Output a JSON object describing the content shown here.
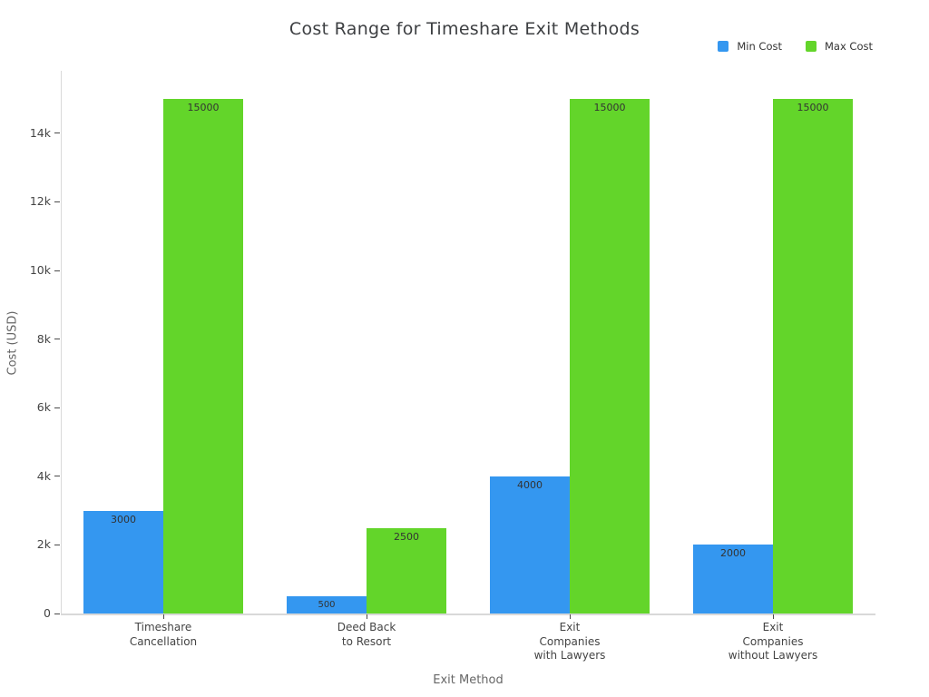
{
  "chart_data": {
    "type": "bar",
    "title": "Cost Range for Timeshare Exit Methods",
    "xlabel": "Exit Method",
    "ylabel": "Cost (USD)",
    "categories": [
      "Timeshare\nCancellation",
      "Deed Back\nto Resort",
      "Exit\nCompanies\nwith Lawyers",
      "Exit\nCompanies\nwithout Lawyers"
    ],
    "series": [
      {
        "name": "Min Cost",
        "color": "#3497f0",
        "values": [
          3000,
          500,
          4000,
          2000
        ]
      },
      {
        "name": "Max Cost",
        "color": "#63d52a",
        "values": [
          15000,
          2500,
          15000,
          15000
        ]
      }
    ],
    "bar_labels_visible": true,
    "ylim": [
      0,
      15800
    ],
    "yticks": [
      {
        "value": 0,
        "label": "0"
      },
      {
        "value": 2000,
        "label": "2k"
      },
      {
        "value": 4000,
        "label": "4k"
      },
      {
        "value": 6000,
        "label": "6k"
      },
      {
        "value": 8000,
        "label": "8k"
      },
      {
        "value": 10000,
        "label": "10k"
      },
      {
        "value": 12000,
        "label": "12k"
      },
      {
        "value": 14000,
        "label": "14k"
      }
    ],
    "grid": false,
    "legend_position": "top-right",
    "axis_line_color": "#d9d9d9"
  }
}
